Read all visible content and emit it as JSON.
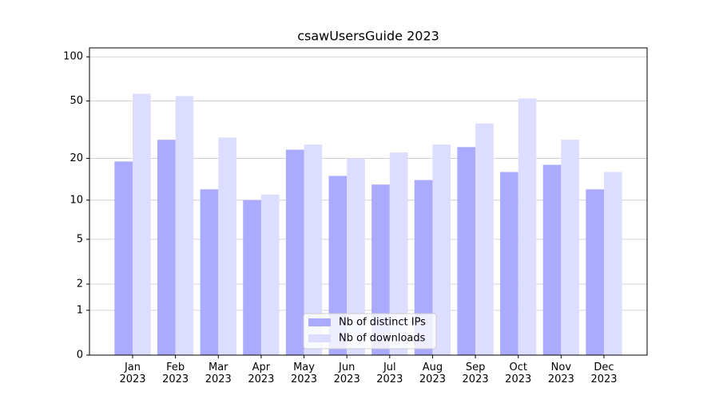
{
  "chart_data": {
    "type": "bar",
    "title": "csawUsersGuide 2023",
    "categories": [
      "Jan\n2023",
      "Feb\n2023",
      "Mar\n2023",
      "Apr\n2023",
      "May\n2023",
      "Jun\n2023",
      "Jul\n2023",
      "Aug\n2023",
      "Sep\n2023",
      "Oct\n2023",
      "Nov\n2023",
      "Dec\n2023"
    ],
    "series": [
      {
        "name": "Nb of distinct IPs",
        "color": "#aaaaff",
        "values": [
          19,
          27,
          12,
          10,
          23,
          15,
          13,
          14,
          24,
          16,
          18,
          12
        ]
      },
      {
        "name": "Nb of downloads",
        "color": "#ddddff",
        "values": [
          56,
          54,
          28,
          11,
          25,
          20,
          22,
          25,
          35,
          52,
          27,
          16
        ]
      }
    ],
    "yscale": "log1p",
    "ylim": [
      0,
      115
    ],
    "yticks": [
      0,
      1,
      2,
      5,
      10,
      20,
      50,
      100
    ],
    "grid": true,
    "legend": "lower center"
  }
}
